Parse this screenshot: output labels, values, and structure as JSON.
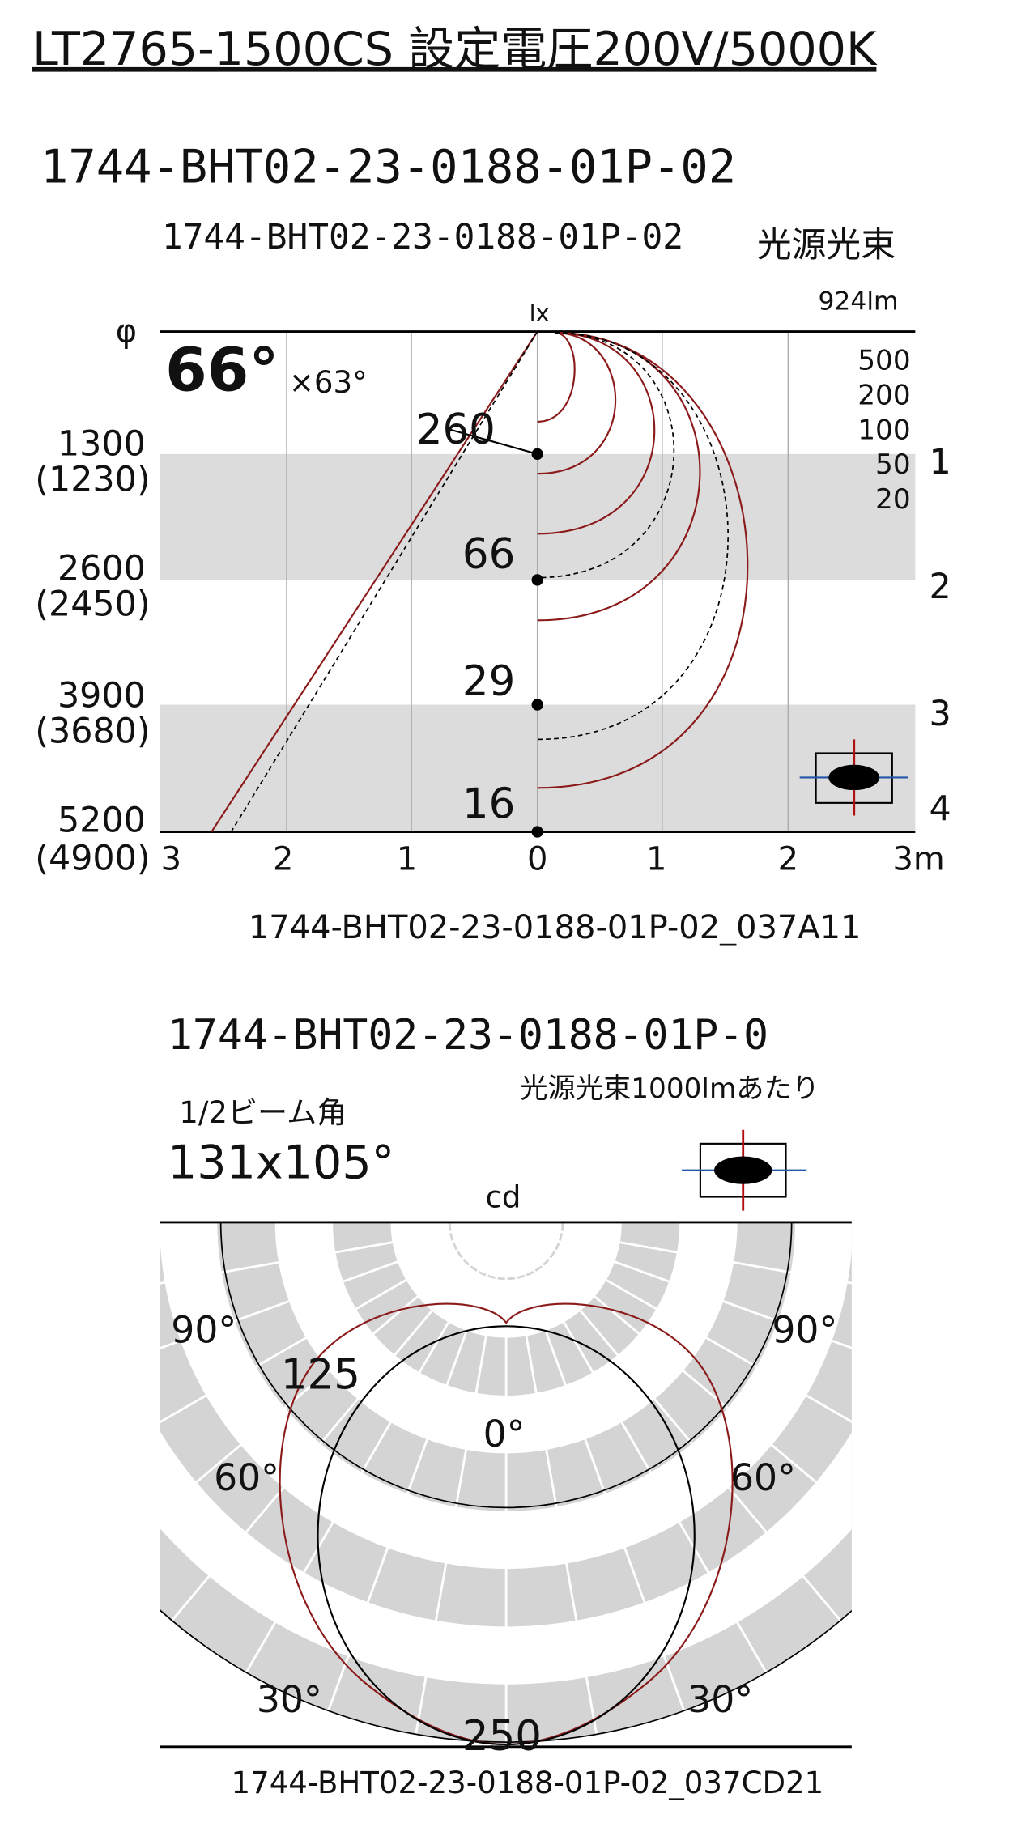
{
  "title": "LT2765-1500CS 設定電圧200V/5000K",
  "illuminance_diagram": {
    "heading": "1744-BHT02-23-0188-01P-02",
    "subheading": "1744-BHT02-23-0188-01P-02",
    "flux_label": "光源光束",
    "flux_value": "924lm",
    "phi": "φ",
    "unit": "lx",
    "beam_angle": "66°",
    "beam_angle_alt": "×63°",
    "center_values": [
      "260",
      "66",
      "29",
      "16"
    ],
    "lux_legend": [
      "500",
      "200",
      "100",
      "50",
      "20"
    ],
    "right_scale": [
      "1",
      "2",
      "3",
      "4"
    ],
    "heights": [
      [
        "1300",
        "(1230)"
      ],
      [
        "2600",
        "(2450)"
      ],
      [
        "3900",
        "(3680)"
      ],
      [
        "5200",
        "(4900)"
      ]
    ],
    "x_labels": [
      "3",
      "2",
      "1",
      "0",
      "1",
      "2",
      "3m"
    ],
    "footer": "1744-BHT02-23-0188-01P-02_037A11"
  },
  "polar_diagram": {
    "heading": "1744-BHT02-23-0188-01P-0",
    "note": "光源光束1000lmあたり",
    "half_beam_label": "1/2ビーム角",
    "half_beam_value": "131x105°",
    "unit": "cd",
    "angle_labels": [
      "90°",
      "90°",
      "60°",
      "60°",
      "30°",
      "30°",
      "0°"
    ],
    "radius_labels": [
      "125",
      "250"
    ],
    "footer": "1744-BHT02-23-0188-01P-02_037CD21"
  }
}
